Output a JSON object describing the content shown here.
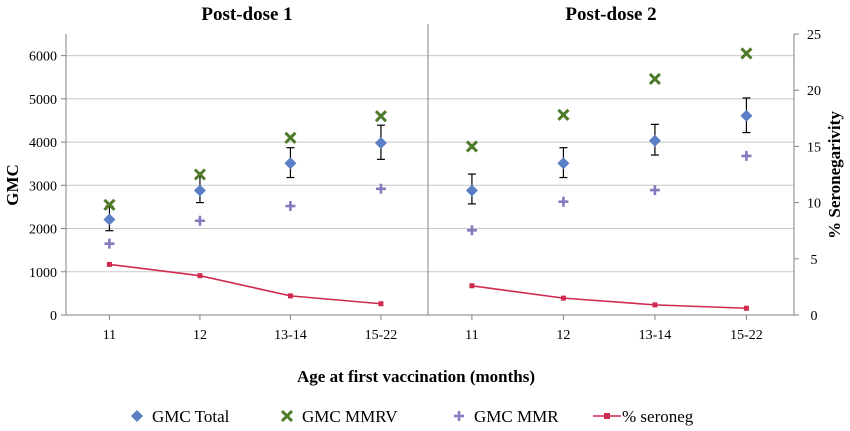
{
  "chart_data": {
    "type": "line",
    "panels": [
      {
        "title": "Post-dose 1",
        "categories": [
          "11",
          "12",
          "13-14",
          "15-22"
        ],
        "series": [
          {
            "name": "GMC Total",
            "axis": "left",
            "marker": "diamond",
            "color": "#5b7fc4",
            "values": [
              2210,
              2880,
              3510,
              3980
            ],
            "error_low": [
              1950,
              2600,
              3180,
              3600
            ],
            "error_high": [
              2520,
              3200,
              3870,
              4390
            ]
          },
          {
            "name": "GMC MMRV",
            "axis": "left",
            "marker": "x",
            "color": "#4e7a2a",
            "values": [
              2550,
              3250,
              4100,
              4600
            ]
          },
          {
            "name": "GMC MMR",
            "axis": "left",
            "marker": "plus",
            "color": "#8878bd",
            "values": [
              1650,
              2180,
              2520,
              2920
            ]
          },
          {
            "name": "% seroneg",
            "axis": "right",
            "marker": "square",
            "color": "#d02a4f",
            "values": [
              4.5,
              3.5,
              1.7,
              1.0
            ]
          }
        ]
      },
      {
        "title": "Post-dose 2",
        "categories": [
          "11",
          "12",
          "13-14",
          "15-22"
        ],
        "series": [
          {
            "name": "GMC Total",
            "axis": "left",
            "marker": "diamond",
            "color": "#5b7fc4",
            "values": [
              2880,
              3510,
              4030,
              4610
            ],
            "error_low": [
              2570,
              3180,
              3700,
              4220
            ],
            "error_high": [
              3260,
              3870,
              4410,
              5020
            ]
          },
          {
            "name": "GMC MMRV",
            "axis": "left",
            "marker": "x",
            "color": "#4e7a2a",
            "values": [
              3900,
              4630,
              5460,
              6050
            ]
          },
          {
            "name": "GMC MMR",
            "axis": "left",
            "marker": "plus",
            "color": "#8878bd",
            "values": [
              1960,
              2620,
              2890,
              3680
            ]
          },
          {
            "name": "% seroneg",
            "axis": "right",
            "marker": "square",
            "color": "#d02a4f",
            "values": [
              2.6,
              1.5,
              0.9,
              0.6
            ]
          }
        ]
      }
    ],
    "ylabel": "GMC",
    "y2label": "% Seronegarivity",
    "xlabel": "Age at first vaccination (months)",
    "ylim": [
      0,
      6500
    ],
    "yticks": [
      0,
      1000,
      2000,
      3000,
      4000,
      5000,
      6000
    ],
    "y2lim": [
      0,
      25
    ],
    "y2ticks": [
      0,
      5,
      10,
      15,
      20,
      25
    ],
    "grid": true,
    "legend_position": "bottom",
    "legend": [
      "GMC Total",
      "GMC MMRV",
      "GMC MMR",
      "% seroneg"
    ]
  }
}
